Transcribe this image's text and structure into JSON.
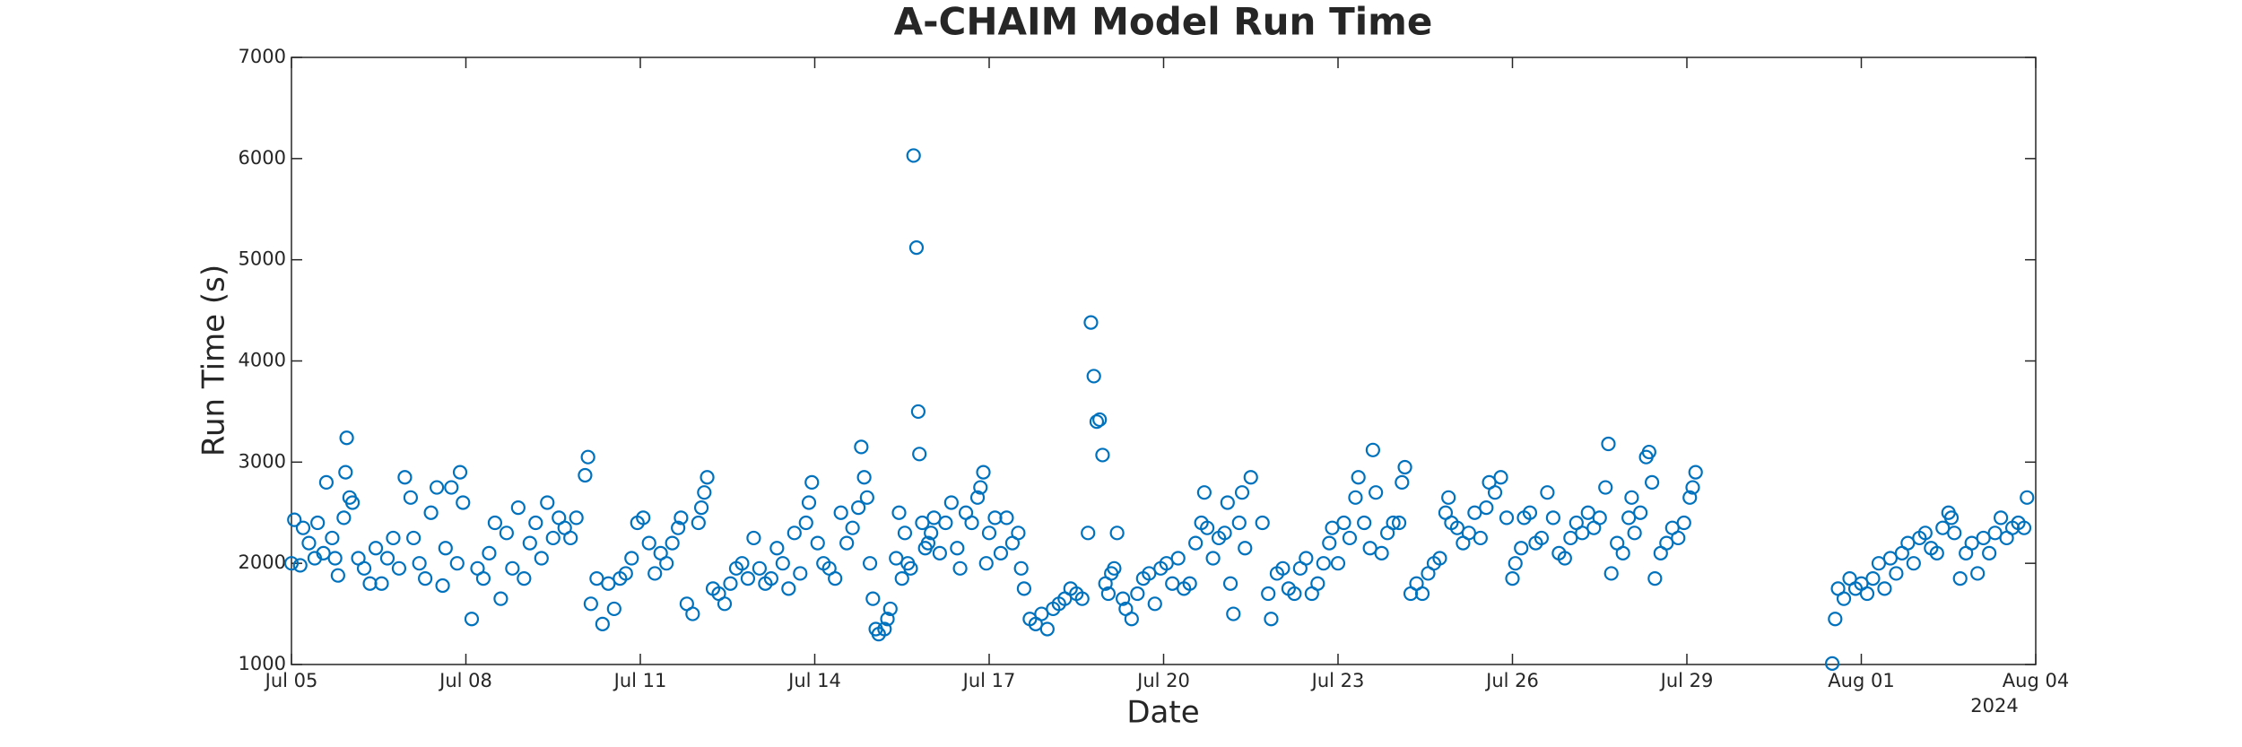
{
  "chart_data": {
    "type": "scatter",
    "title": "A-CHAIM Model Run Time",
    "xlabel": "Date",
    "ylabel": "Run Time (s)",
    "year_label": "2024",
    "color": "#0072bd",
    "grid": false,
    "xlim": [
      0,
      30
    ],
    "xticks": [
      {
        "value": 0,
        "label": "Jul 05"
      },
      {
        "value": 3,
        "label": "Jul 08"
      },
      {
        "value": 6,
        "label": "Jul 11"
      },
      {
        "value": 9,
        "label": "Jul 14"
      },
      {
        "value": 12,
        "label": "Jul 17"
      },
      {
        "value": 15,
        "label": "Jul 20"
      },
      {
        "value": 18,
        "label": "Jul 23"
      },
      {
        "value": 21,
        "label": "Jul 26"
      },
      {
        "value": 24,
        "label": "Jul 29"
      },
      {
        "value": 27,
        "label": "Aug 01"
      },
      {
        "value": 30,
        "label": "Aug 04"
      }
    ],
    "ylim": [
      1000,
      7000
    ],
    "yticks": [
      1000,
      2000,
      3000,
      4000,
      5000,
      6000,
      7000
    ],
    "x": [
      0.0,
      0.05,
      0.15,
      0.2,
      0.3,
      0.4,
      0.45,
      0.55,
      0.6,
      0.7,
      0.75,
      0.8,
      0.9,
      0.93,
      0.95,
      1.0,
      1.05,
      1.15,
      1.25,
      1.35,
      1.45,
      1.55,
      1.65,
      1.75,
      1.85,
      1.95,
      2.05,
      2.1,
      2.2,
      2.3,
      2.4,
      2.5,
      2.6,
      2.65,
      2.75,
      2.85,
      2.9,
      2.95,
      3.1,
      3.2,
      3.3,
      3.4,
      3.5,
      3.6,
      3.7,
      3.8,
      3.9,
      4.0,
      4.1,
      4.2,
      4.3,
      4.4,
      4.5,
      4.6,
      4.7,
      4.8,
      4.9,
      5.1,
      5.05,
      5.15,
      5.25,
      5.35,
      5.45,
      5.55,
      5.65,
      5.75,
      5.85,
      5.95,
      6.05,
      6.15,
      6.25,
      6.35,
      6.45,
      6.55,
      6.65,
      6.7,
      6.8,
      6.9,
      7.0,
      7.05,
      7.1,
      7.15,
      7.25,
      7.35,
      7.45,
      7.55,
      7.65,
      7.75,
      7.85,
      7.95,
      8.05,
      8.15,
      8.25,
      8.35,
      8.45,
      8.55,
      8.65,
      8.75,
      8.85,
      8.9,
      8.95,
      9.05,
      9.15,
      9.25,
      9.35,
      9.45,
      9.55,
      9.65,
      9.75,
      9.8,
      9.85,
      9.9,
      9.95,
      10.0,
      10.05,
      10.1,
      10.2,
      10.25,
      10.3,
      10.4,
      10.45,
      10.5,
      10.55,
      10.6,
      10.65,
      10.7,
      10.75,
      10.78,
      10.8,
      10.85,
      10.9,
      10.95,
      11.0,
      11.05,
      11.15,
      11.25,
      11.35,
      11.45,
      11.5,
      11.6,
      11.7,
      11.8,
      11.85,
      11.9,
      11.95,
      12.0,
      12.1,
      12.2,
      12.3,
      12.4,
      12.5,
      12.55,
      12.6,
      12.7,
      12.8,
      12.9,
      13.0,
      13.1,
      13.2,
      13.3,
      13.4,
      13.5,
      13.6,
      13.7,
      13.75,
      13.8,
      13.85,
      13.9,
      13.95,
      14.0,
      14.05,
      14.1,
      14.15,
      14.2,
      14.3,
      14.35,
      14.45,
      14.55,
      14.65,
      14.75,
      14.85,
      14.95,
      15.05,
      15.15,
      15.25,
      15.35,
      15.45,
      15.55,
      15.65,
      15.7,
      15.75,
      15.85,
      15.95,
      16.05,
      16.1,
      16.15,
      16.2,
      16.3,
      16.35,
      16.4,
      16.5,
      16.7,
      16.8,
      16.85,
      16.95,
      17.05,
      17.15,
      17.25,
      17.35,
      17.45,
      17.55,
      17.65,
      17.75,
      17.85,
      17.9,
      18.0,
      18.1,
      18.2,
      18.3,
      18.35,
      18.45,
      18.55,
      18.6,
      18.65,
      18.75,
      18.85,
      18.95,
      19.05,
      19.1,
      19.15,
      19.25,
      19.35,
      19.45,
      19.55,
      19.65,
      19.75,
      19.85,
      19.9,
      19.95,
      20.05,
      20.15,
      20.25,
      20.35,
      20.45,
      20.55,
      20.6,
      20.7,
      20.8,
      20.9,
      21.0,
      21.05,
      21.15,
      21.2,
      21.3,
      21.4,
      21.5,
      21.6,
      21.7,
      21.8,
      21.9,
      22.0,
      22.1,
      22.2,
      22.3,
      22.4,
      22.5,
      22.6,
      22.65,
      22.7,
      22.8,
      22.9,
      23.0,
      23.05,
      23.1,
      23.2,
      23.3,
      23.35,
      23.4,
      23.45,
      23.55,
      23.65,
      23.75,
      23.85,
      23.95,
      24.05,
      24.1,
      24.15,
      26.5,
      26.55,
      26.6,
      26.7,
      26.8,
      26.9,
      27.0,
      27.1,
      27.2,
      27.3,
      27.4,
      27.5,
      27.6,
      27.7,
      27.8,
      27.9,
      28.0,
      28.1,
      28.2,
      28.3,
      28.4,
      28.5,
      28.55,
      28.6,
      28.7,
      28.8,
      28.9,
      29.0,
      29.1,
      29.2,
      29.3,
      29.4,
      29.5,
      29.6,
      29.7,
      29.8,
      29.85
    ],
    "values": [
      2000,
      2430,
      1980,
      2350,
      2200,
      2050,
      2400,
      2100,
      2800,
      2250,
      2050,
      1880,
      2450,
      2900,
      3240,
      2650,
      2600,
      2050,
      1950,
      1800,
      2150,
      1800,
      2050,
      2250,
      1950,
      2850,
      2650,
      2250,
      2000,
      1850,
      2500,
      2750,
      1780,
      2150,
      2750,
      2000,
      2900,
      2600,
      1450,
      1950,
      1850,
      2100,
      2400,
      1650,
      2300,
      1950,
      2550,
      1850,
      2200,
      2400,
      2050,
      2600,
      2250,
      2450,
      2350,
      2250,
      2450,
      3050,
      2870,
      1600,
      1850,
      1400,
      1800,
      1550,
      1850,
      1900,
      2050,
      2400,
      2450,
      2200,
      1900,
      2100,
      2000,
      2200,
      2350,
      2450,
      1600,
      1500,
      2400,
      2550,
      2700,
      2850,
      1750,
      1700,
      1600,
      1800,
      1950,
      2000,
      1850,
      2250,
      1950,
      1800,
      1850,
      2150,
      2000,
      1750,
      2300,
      1900,
      2400,
      2600,
      2800,
      2200,
      2000,
      1950,
      1850,
      2500,
      2200,
      2350,
      2550,
      3150,
      2850,
      2650,
      2000,
      1650,
      1350,
      1300,
      1350,
      1450,
      1550,
      2050,
      2500,
      1850,
      2300,
      2000,
      1950,
      6030,
      5120,
      3500,
      3080,
      2400,
      2150,
      2200,
      2300,
      2450,
      2100,
      2400,
      2600,
      2150,
      1950,
      2500,
      2400,
      2650,
      2750,
      2900,
      2000,
      2300,
      2450,
      2100,
      2450,
      2200,
      2300,
      1950,
      1750,
      1450,
      1400,
      1500,
      1350,
      1550,
      1600,
      1650,
      1750,
      1700,
      1650,
      2300,
      4380,
      3850,
      3400,
      3420,
      3070,
      1800,
      1700,
      1900,
      1950,
      2300,
      1650,
      1550,
      1450,
      1700,
      1850,
      1900,
      1600,
      1950,
      2000,
      1800,
      2050,
      1750,
      1800,
      2200,
      2400,
      2700,
      2350,
      2050,
      2250,
      2300,
      2600,
      1800,
      1500,
      2400,
      2700,
      2150,
      2850,
      2400,
      1700,
      1450,
      1900,
      1950,
      1750,
      1700,
      1950,
      2050,
      1700,
      1800,
      2000,
      2200,
      2350,
      2000,
      2400,
      2250,
      2650,
      2850,
      2400,
      2150,
      3120,
      2700,
      2100,
      2300,
      2400,
      2400,
      2800,
      2950,
      1700,
      1800,
      1700,
      1900,
      2000,
      2050,
      2500,
      2650,
      2400,
      2350,
      2200,
      2300,
      2500,
      2250,
      2550,
      2800,
      2700,
      2850,
      2450,
      1850,
      2000,
      2150,
      2450,
      2500,
      2200,
      2250,
      2700,
      2450,
      2100,
      2050,
      2250,
      2400,
      2300,
      2500,
      2350,
      2450,
      2750,
      3180,
      1900,
      2200,
      2100,
      2450,
      2650,
      2300,
      2500,
      3050,
      3100,
      2800,
      1850,
      2100,
      2200,
      2350,
      2250,
      2400,
      2650,
      2750,
      2900,
      1010,
      1450,
      1750,
      1650,
      1850,
      1750,
      1800,
      1700,
      1850,
      2000,
      1750,
      2050,
      1900,
      2100,
      2200,
      2000,
      2250,
      2300,
      2150,
      2100,
      2350,
      2500,
      2450,
      2300,
      1850,
      2100,
      2200,
      1900,
      2250,
      2100,
      2300,
      2450,
      2250,
      2350,
      2400,
      2350,
      2650
    ]
  }
}
